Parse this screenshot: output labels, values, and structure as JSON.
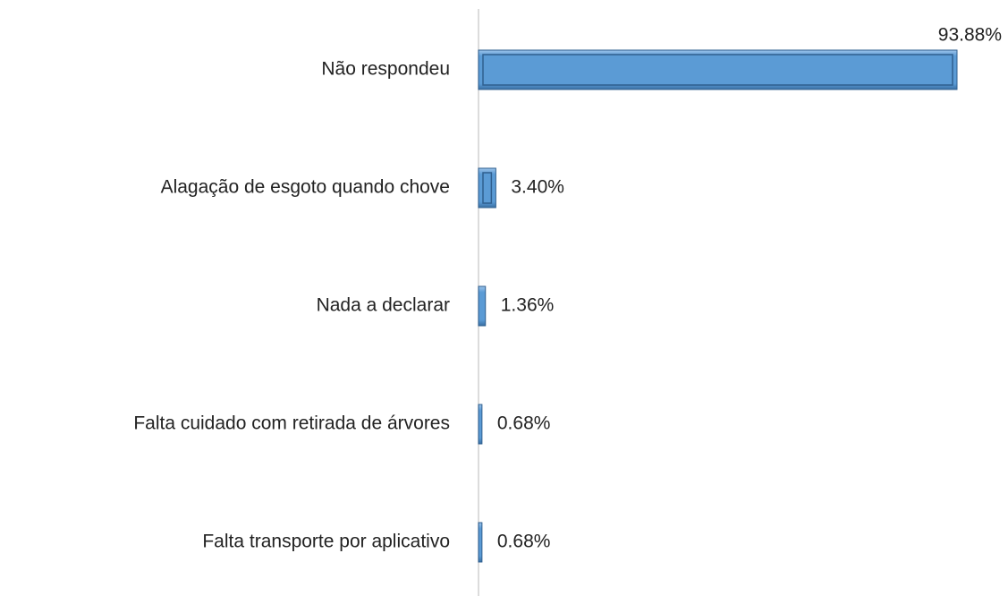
{
  "chart_data": {
    "type": "bar",
    "orientation": "horizontal",
    "categories": [
      "Não respondeu",
      "Alagação de esgoto quando chove",
      "Nada a declarar",
      "Falta cuidado com retirada de árvores",
      "Falta transporte por aplicativo"
    ],
    "values": [
      93.88,
      3.4,
      1.36,
      0.68,
      0.68
    ],
    "value_labels": [
      "93.88%",
      "3.40%",
      "1.36%",
      "0.68%",
      "0.68%"
    ],
    "color": "#5b9bd5"
  }
}
